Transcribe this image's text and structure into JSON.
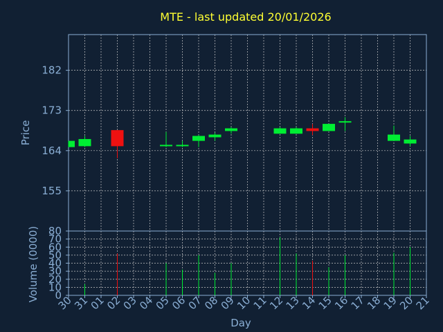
{
  "chart_data": {
    "type": "candlestick",
    "title": "MTE - last updated 20/01/2026",
    "xlabel": "Day",
    "price_panel": {
      "ylabel": "Price",
      "ylim": [
        146,
        190
      ],
      "yticks": [
        155,
        164,
        173,
        182
      ]
    },
    "volume_panel": {
      "ylabel": "Volume (0000)",
      "ylim": [
        0,
        80
      ],
      "yticks": [
        0,
        10,
        20,
        30,
        40,
        50,
        60,
        70,
        80
      ]
    },
    "x_tick_labels": [
      "30",
      "31",
      "01",
      "02",
      "03",
      "04",
      "05",
      "06",
      "07",
      "08",
      "09",
      "10",
      "11",
      "12",
      "13",
      "14",
      "15",
      "16",
      "17",
      "18",
      "19",
      "20",
      "21"
    ],
    "candles": [
      {
        "day": "30",
        "open": 164.8,
        "high": 166.2,
        "low": 164.8,
        "close": 166.2,
        "volume": 0
      },
      {
        "day": "31",
        "open": 165.0,
        "high": 167.3,
        "low": 164.8,
        "close": 166.6,
        "volume": 14
      },
      {
        "day": "02",
        "open": 168.6,
        "high": 168.6,
        "low": 162.3,
        "close": 165.0,
        "volume": 52
      },
      {
        "day": "05",
        "open": 165.0,
        "high": 168.2,
        "low": 164.8,
        "close": 165.3,
        "volume": 40
      },
      {
        "day": "06",
        "open": 165.0,
        "high": 166.2,
        "low": 164.8,
        "close": 165.3,
        "volume": 32
      },
      {
        "day": "07",
        "open": 166.2,
        "high": 167.5,
        "low": 164.8,
        "close": 167.3,
        "volume": 50
      },
      {
        "day": "08",
        "open": 167.0,
        "high": 168.0,
        "low": 166.2,
        "close": 167.6,
        "volume": 28
      },
      {
        "day": "09",
        "open": 168.4,
        "high": 169.3,
        "low": 167.8,
        "close": 169.0,
        "volume": 40
      },
      {
        "day": "12",
        "open": 167.8,
        "high": 169.3,
        "low": 167.8,
        "close": 169.0,
        "volume": 72
      },
      {
        "day": "13",
        "open": 167.8,
        "high": 169.3,
        "low": 167.8,
        "close": 169.0,
        "volume": 52
      },
      {
        "day": "14",
        "open": 169.0,
        "high": 170.0,
        "low": 167.5,
        "close": 168.4,
        "volume": 43
      },
      {
        "day": "15",
        "open": 168.4,
        "high": 170.0,
        "low": 168.4,
        "close": 170.0,
        "volume": 35
      },
      {
        "day": "16",
        "open": 170.4,
        "high": 171.5,
        "low": 168.4,
        "close": 170.6,
        "volume": 50
      },
      {
        "day": "19",
        "open": 166.2,
        "high": 169.6,
        "low": 166.2,
        "close": 167.6,
        "volume": 53
      },
      {
        "day": "20",
        "open": 165.6,
        "high": 167.3,
        "low": 165.0,
        "close": 166.5,
        "volume": 60
      }
    ],
    "colors": {
      "background": "#112033",
      "up": "#00ee33",
      "down": "#ee1111",
      "title": "#ffff33",
      "axis_text": "#8aaed4",
      "frame": "#8aaed4",
      "grid": "#c8c8c8"
    },
    "grid": true
  }
}
